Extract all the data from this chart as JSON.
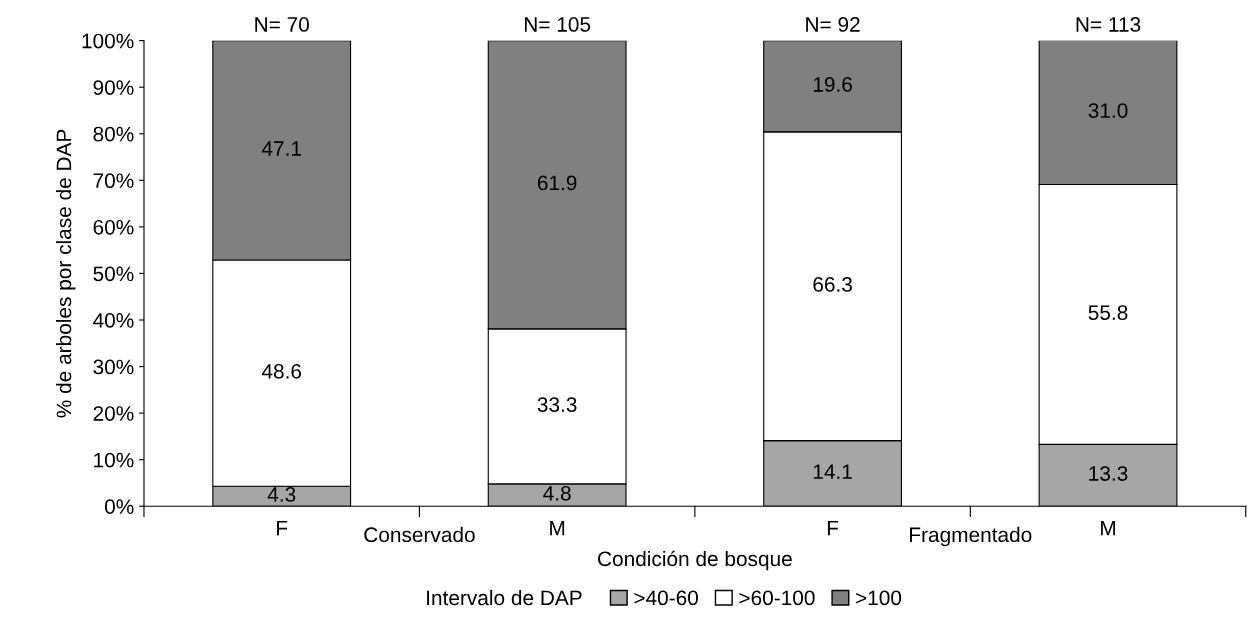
{
  "chart_data": {
    "type": "bar",
    "stacked": true,
    "xlabel": "Condición de bosque",
    "ylabel": "% de arboles por clase de DAP",
    "legend_title": "Intervalo de DAP",
    "legend": "bottom",
    "categories": [
      "F",
      "M",
      "F",
      "M"
    ],
    "series": [
      {
        "name": ">40-60",
        "color": "#a6a6a6",
        "values": [
          4.3,
          4.8,
          14.1,
          13.3
        ],
        "value_labels": [
          "4.3",
          "4.8",
          "14.1",
          "13.3"
        ]
      },
      {
        "name": ">60-100",
        "color": "#ffffff",
        "values": [
          48.6,
          33.3,
          66.3,
          55.8
        ],
        "value_labels": [
          "48.6",
          "33.3",
          "66.3",
          "55.8"
        ]
      },
      {
        "name": ">100",
        "color": "#808080",
        "values": [
          47.1,
          61.9,
          19.6,
          31.0
        ],
        "value_labels": [
          "47.1",
          "61.9",
          "19.6",
          "31.0"
        ]
      }
    ],
    "ylim": [
      0,
      100
    ],
    "yticks": [
      {
        "value": 0,
        "label": "0%"
      },
      {
        "value": 10,
        "label": "10%"
      },
      {
        "value": 20,
        "label": "20%"
      },
      {
        "value": 30,
        "label": "30%"
      },
      {
        "value": 40,
        "label": "40%"
      },
      {
        "value": 50,
        "label": "50%"
      },
      {
        "value": 60,
        "label": "60%"
      },
      {
        "value": 70,
        "label": "70%"
      },
      {
        "value": 80,
        "label": "80%"
      },
      {
        "value": 90,
        "label": "90%"
      },
      {
        "value": 100,
        "label": "100%"
      }
    ],
    "annotations": [
      "N= 70",
      "N= 105",
      "N= 92",
      "N= 113",
      "Conservado",
      "Fragmentado"
    ]
  }
}
